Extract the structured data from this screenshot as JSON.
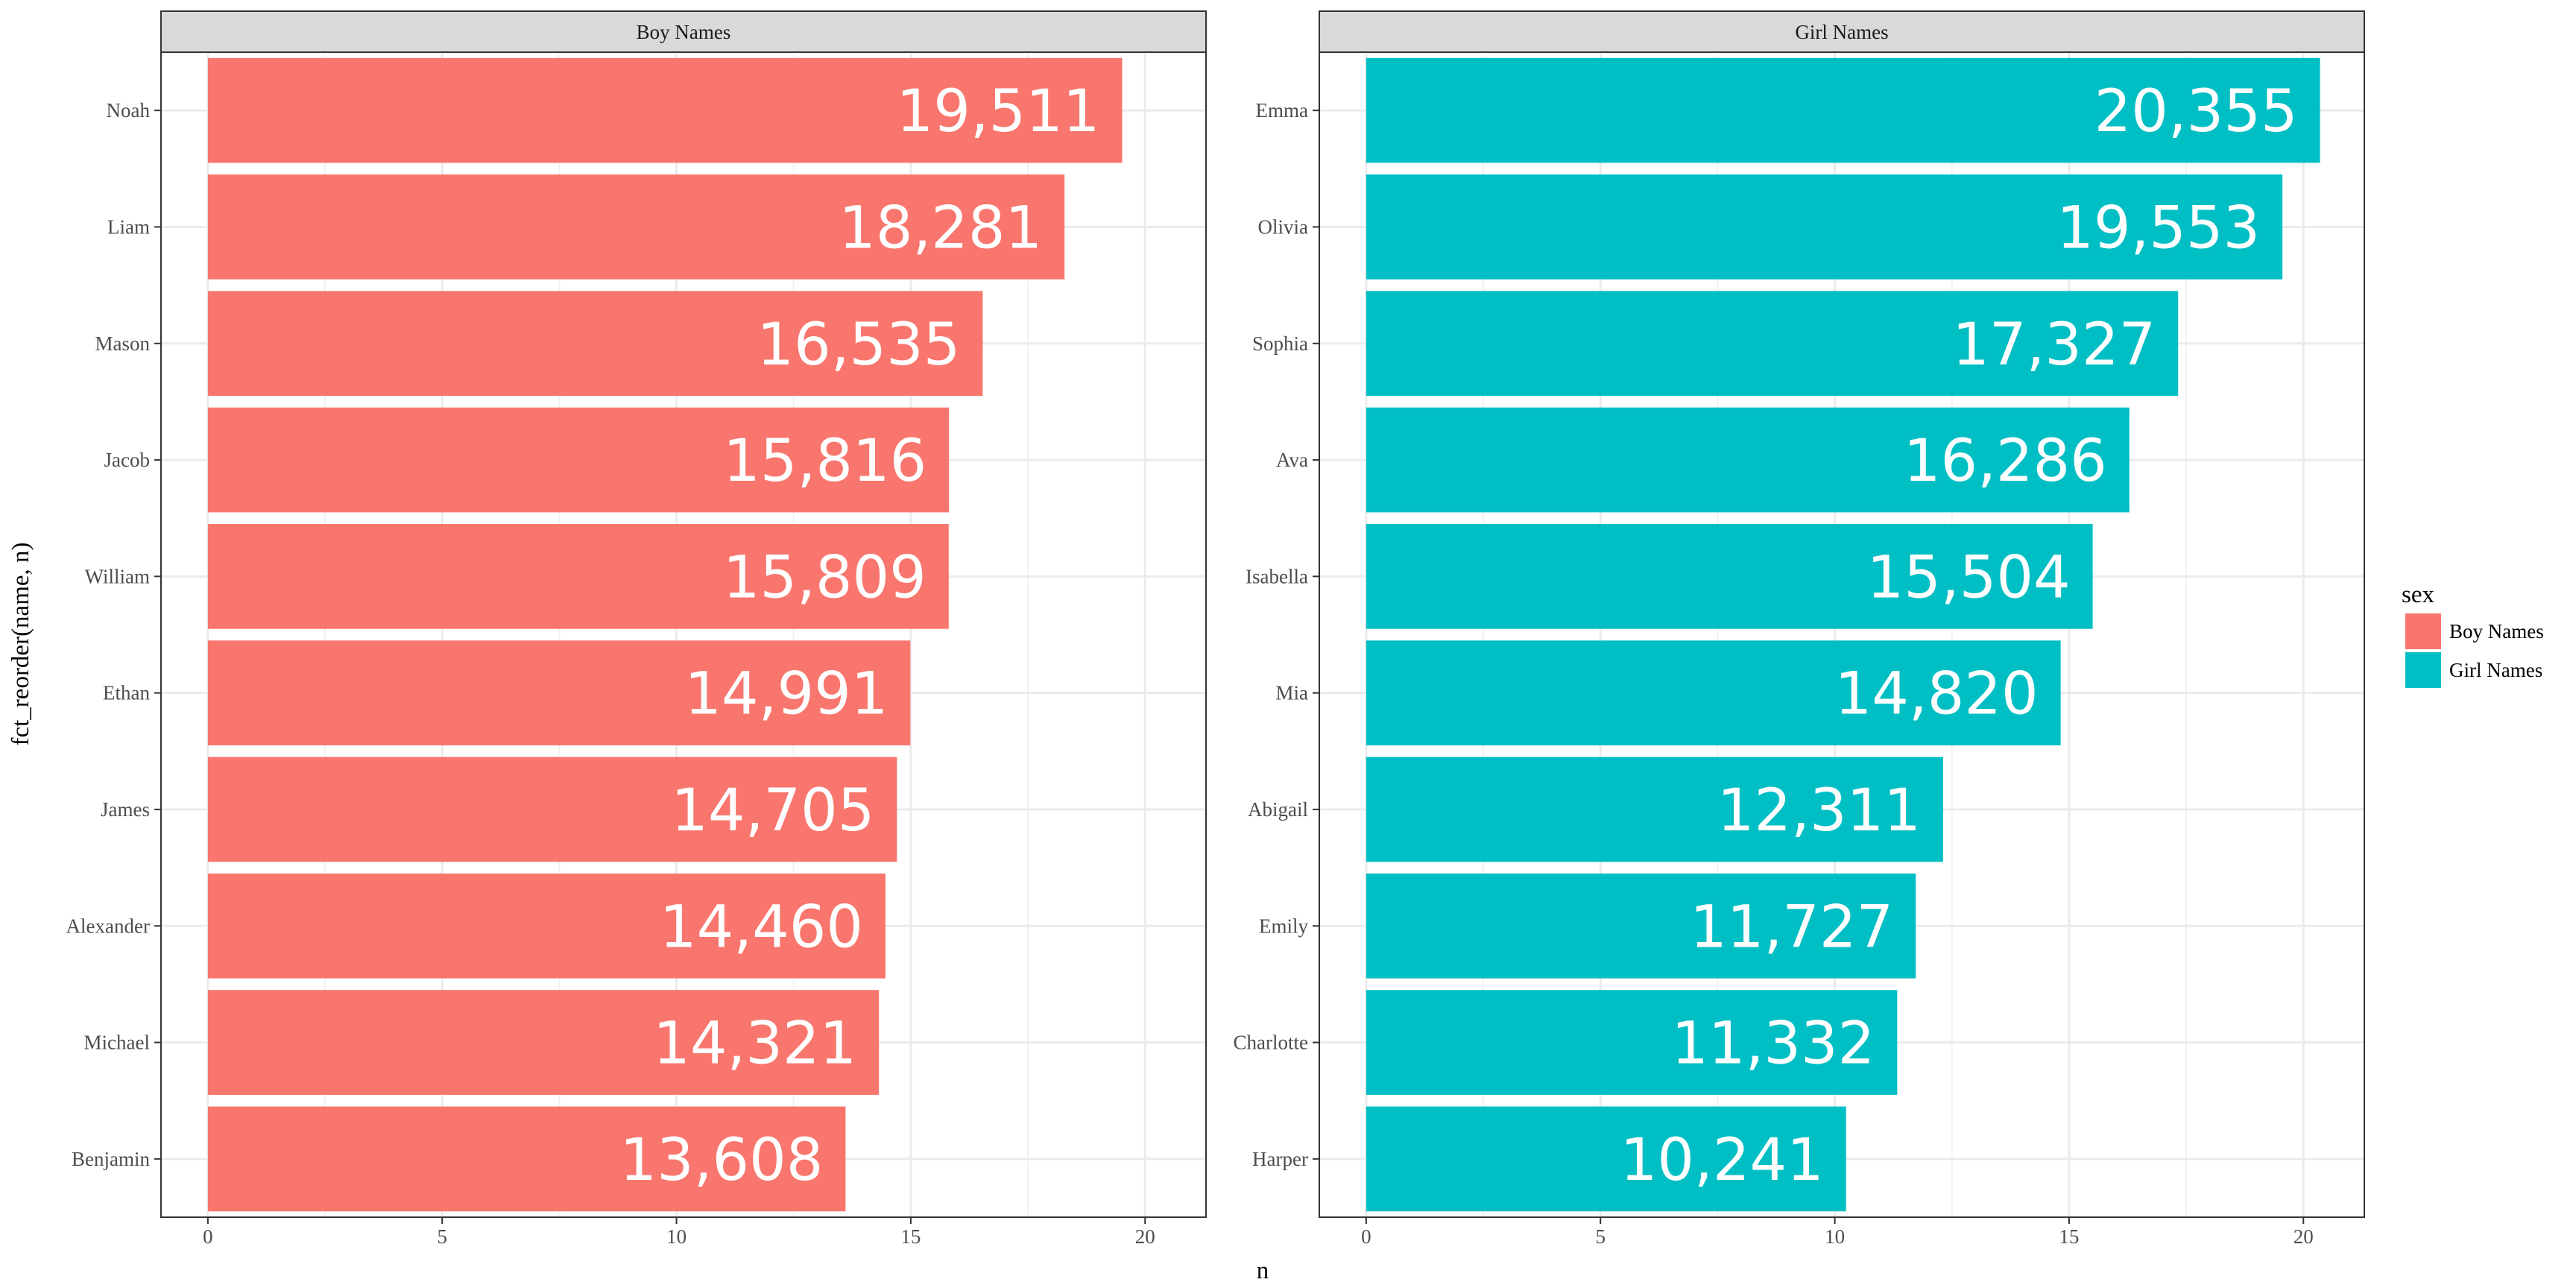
{
  "chart_data": {
    "type": "bar",
    "orientation": "horizontal",
    "xlabel": "n",
    "ylabel": "fct_reorder(name, n)",
    "xlim": [
      -1,
      21.3
    ],
    "x_ticks": [
      0,
      5,
      10,
      15,
      20
    ],
    "x_tick_labels": [
      "0",
      "5",
      "10",
      "15",
      "20"
    ],
    "grid": true,
    "legend": {
      "title": "sex",
      "position": "right",
      "items": [
        {
          "label": "Boy Names",
          "color": "#F8766D"
        },
        {
          "label": "Girl Names",
          "color": "#00BFC4"
        }
      ]
    },
    "facets": [
      {
        "title": "Boy Names",
        "color": "#F8766D",
        "categories": [
          "Noah",
          "Liam",
          "Mason",
          "Jacob",
          "William",
          "Ethan",
          "James",
          "Alexander",
          "Michael",
          "Benjamin"
        ],
        "values": [
          19.511,
          18.281,
          16.535,
          15.816,
          15.809,
          14.991,
          14.705,
          14.46,
          14.321,
          13.608
        ],
        "labels": [
          "19,511",
          "18,281",
          "16,535",
          "15,816",
          "15,809",
          "14,991",
          "14,705",
          "14,460",
          "14,321",
          "13,608"
        ]
      },
      {
        "title": "Girl Names",
        "color": "#00BFC4",
        "categories": [
          "Emma",
          "Olivia",
          "Sophia",
          "Ava",
          "Isabella",
          "Mia",
          "Abigail",
          "Emily",
          "Charlotte",
          "Harper"
        ],
        "values": [
          20.355,
          19.553,
          17.327,
          16.286,
          15.504,
          14.82,
          12.311,
          11.727,
          11.332,
          10.241
        ],
        "labels": [
          "20,355",
          "19,553",
          "17,327",
          "16,286",
          "15,504",
          "14,820",
          "12,311",
          "11,727",
          "11,332",
          "10,241"
        ]
      }
    ]
  }
}
